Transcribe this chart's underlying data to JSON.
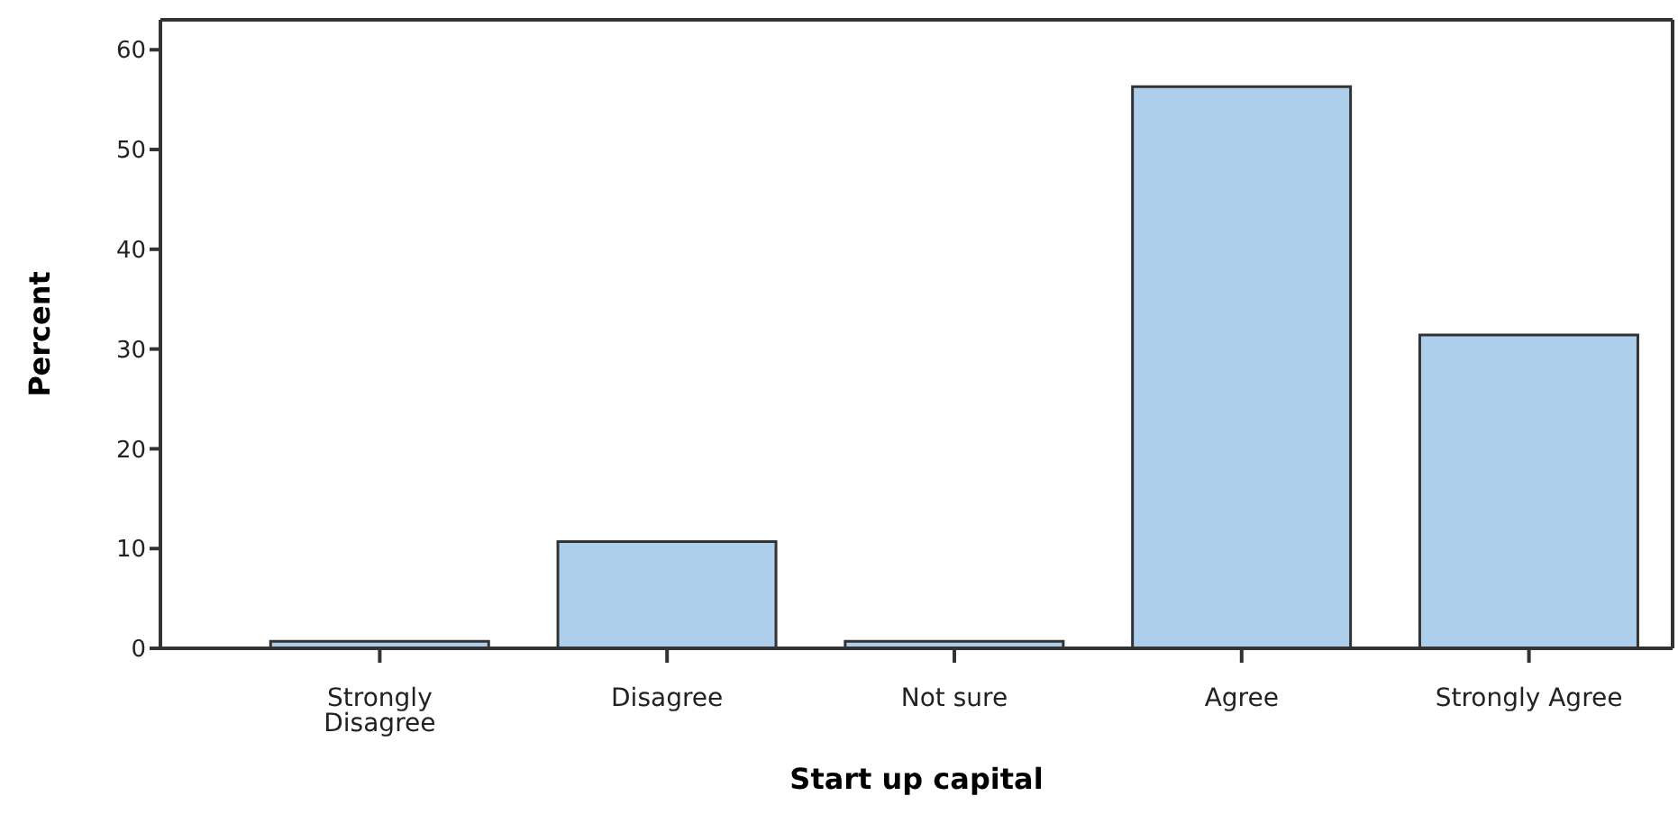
{
  "chart_data": {
    "type": "bar",
    "xlabel": "Start up capital",
    "ylabel": "Percent",
    "categories": [
      "Strongly Disagree",
      "Disagree",
      "Not sure",
      "Agree",
      "Strongly Agree"
    ],
    "values": [
      0.7,
      10.7,
      0.7,
      56.3,
      31.4
    ],
    "color": "#aecfec",
    "ylim": [
      0,
      63
    ],
    "yticks": [
      0,
      10,
      20,
      30,
      40,
      50,
      60
    ],
    "grid": false
  }
}
